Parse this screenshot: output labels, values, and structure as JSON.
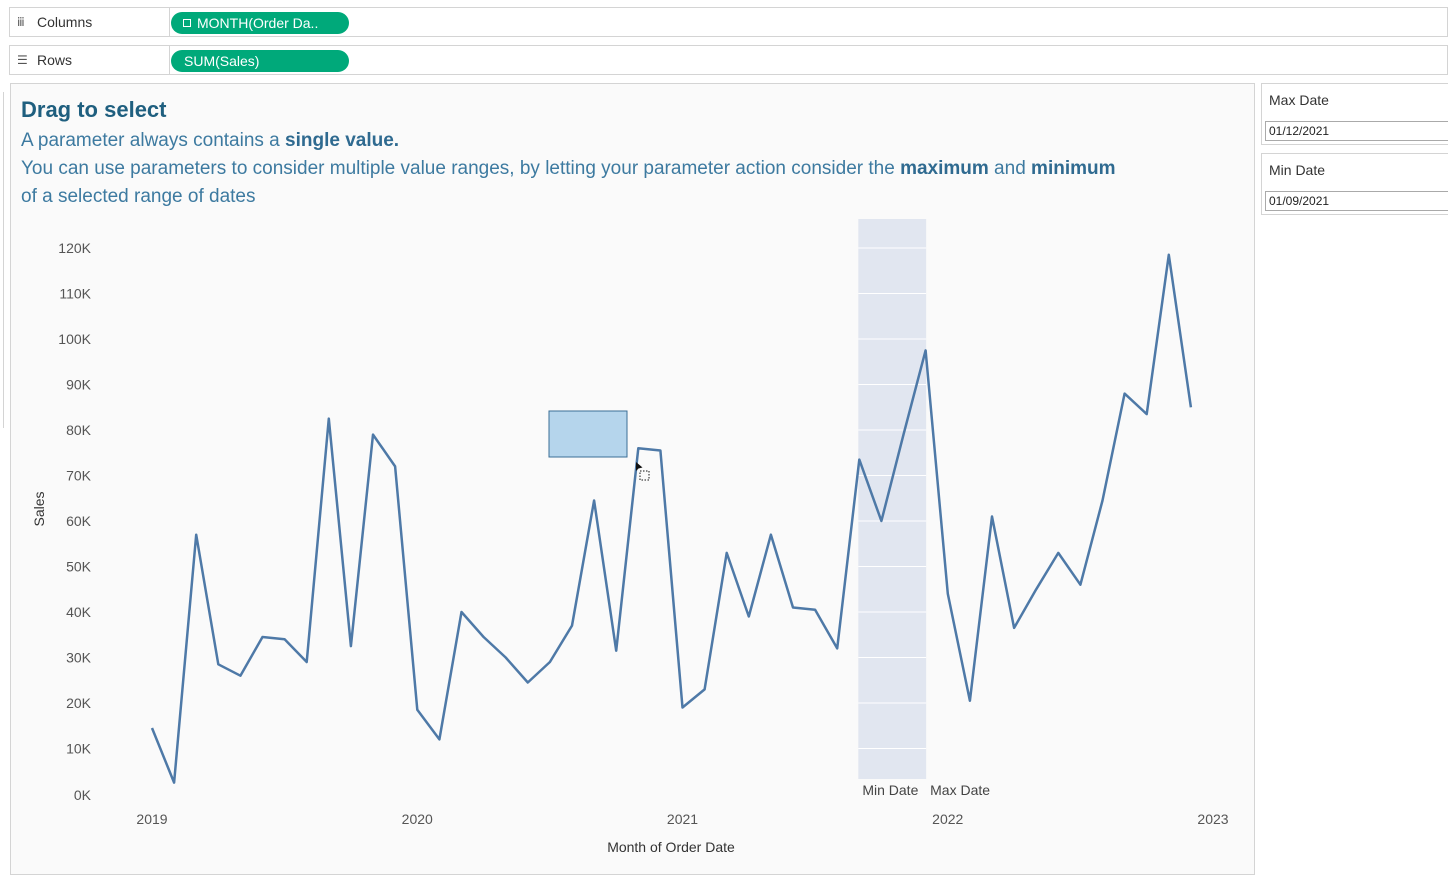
{
  "shelves": {
    "columns": {
      "label": "Columns",
      "icon": "columns-icon",
      "pill": "MONTH(Order Da..",
      "pill_icon": "⊞"
    },
    "rows": {
      "label": "Rows",
      "icon": "rows-icon",
      "pill": "SUM(Sales)"
    }
  },
  "viz": {
    "title": "Drag to select",
    "desc_line1_a": "A parameter always contains a ",
    "desc_line1_b": "single value.",
    "desc_line2_a": "You can use parameters to consider multiple value ranges, by letting your parameter action consider the ",
    "desc_line2_b": "maximum",
    "desc_line2_c": " and ",
    "desc_line2_d": "minimum",
    "desc_line3": "of a selected range of dates"
  },
  "parameters": [
    {
      "label": "Max Date",
      "value": "01/12/2021"
    },
    {
      "label": "Min Date",
      "value": "01/09/2021"
    }
  ],
  "colors": {
    "line": "#4e79a7",
    "pill": "#00a97a",
    "band": "#e1e6f0",
    "selection": "#b5d5ec"
  },
  "chart_data": {
    "type": "line",
    "xlabel": "Month of Order Date",
    "ylabel": "Sales",
    "x_ticks": [
      "2019",
      "2020",
      "2021",
      "2022",
      "2023"
    ],
    "y_ticks": [
      "0K",
      "10K",
      "20K",
      "30K",
      "40K",
      "50K",
      "60K",
      "70K",
      "80K",
      "90K",
      "100K",
      "110K",
      "120K"
    ],
    "ylim": [
      0,
      120000
    ],
    "series": [
      {
        "values": [
          14500,
          2500,
          57000,
          28500,
          26000,
          34500,
          34000,
          29000,
          82500,
          32500,
          79000,
          72000,
          18500,
          12000,
          40000,
          34500,
          30000,
          24500,
          29000,
          37000,
          64500,
          31500,
          76000,
          75500,
          19000,
          23000,
          53000,
          39000,
          57000,
          41000,
          40500,
          32000,
          73500,
          60000,
          79000,
          97500,
          44000,
          20500,
          61000,
          36500,
          45000,
          53000,
          46000,
          64500,
          88000,
          83500,
          118500,
          85000
        ]
      }
    ],
    "x_start": "2019-01",
    "band": {
      "min_label": "Min Date",
      "max_label": "Max Date",
      "from": "2021-09",
      "to": "2021-12"
    }
  }
}
